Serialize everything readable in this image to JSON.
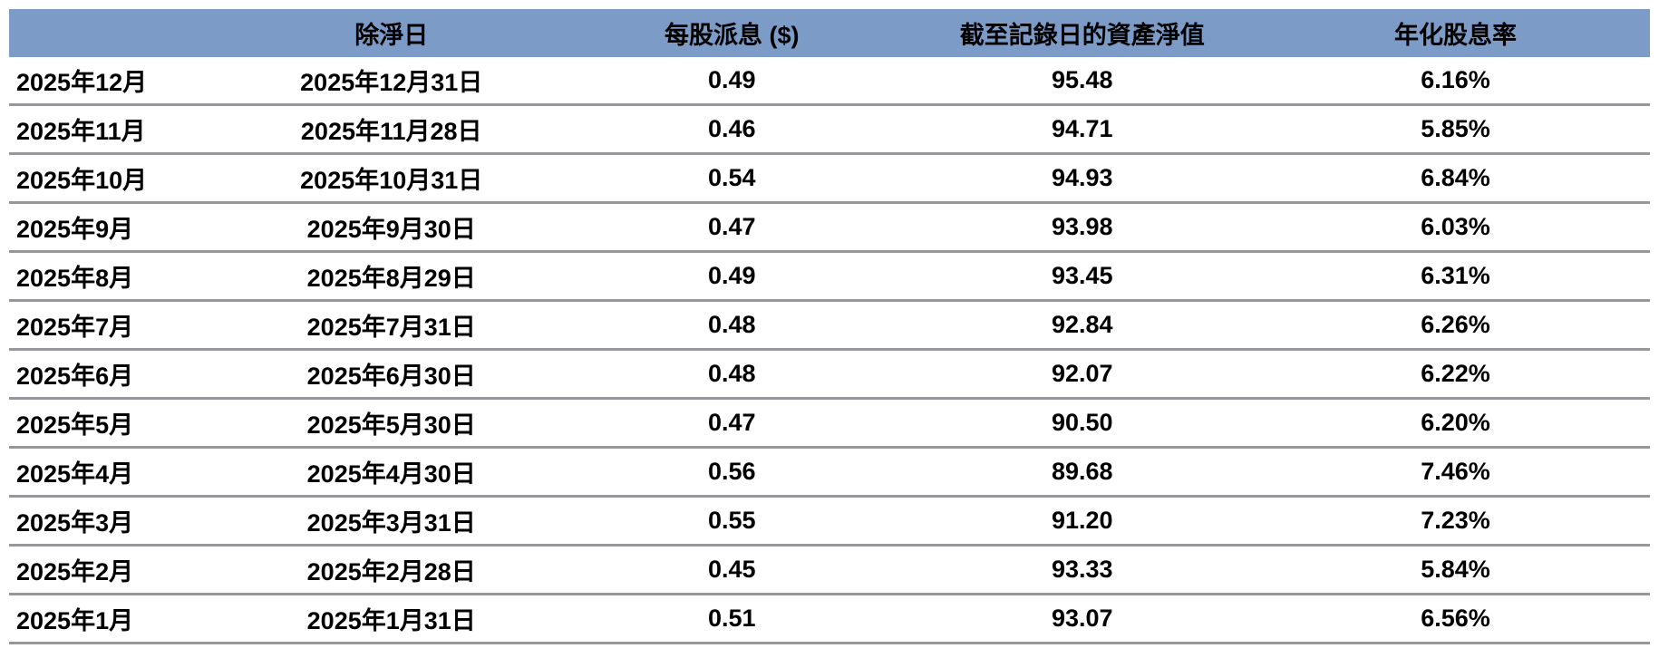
{
  "colors": {
    "header_bg": "#7C9BC7",
    "row_line": "#97979B",
    "text": "#000000",
    "page_bg": "#FFFFFF"
  },
  "chart_data": {
    "type": "table",
    "title": "",
    "columns": [
      "",
      "除淨日",
      "每股派息 ($)",
      "截至記錄日的資產淨值",
      "年化股息率"
    ],
    "rows": [
      [
        "2025年12月",
        "2025年12月31日",
        "0.49",
        "95.48",
        "6.16%"
      ],
      [
        "2025年11月",
        "2025年11月28日",
        "0.46",
        "94.71",
        "5.85%"
      ],
      [
        "2025年10月",
        "2025年10月31日",
        "0.54",
        "94.93",
        "6.84%"
      ],
      [
        "2025年9月",
        "2025年9月30日",
        "0.47",
        "93.98",
        "6.03%"
      ],
      [
        "2025年8月",
        "2025年8月29日",
        "0.49",
        "93.45",
        "6.31%"
      ],
      [
        "2025年7月",
        "2025年7月31日",
        "0.48",
        "92.84",
        "6.26%"
      ],
      [
        "2025年6月",
        "2025年6月30日",
        "0.48",
        "92.07",
        "6.22%"
      ],
      [
        "2025年5月",
        "2025年5月30日",
        "0.47",
        "90.50",
        "6.20%"
      ],
      [
        "2025年4月",
        "2025年4月30日",
        "0.56",
        "89.68",
        "7.46%"
      ],
      [
        "2025年3月",
        "2025年3月31日",
        "0.55",
        "91.20",
        "7.23%"
      ],
      [
        "2025年2月",
        "2025年2月28日",
        "0.45",
        "93.33",
        "5.84%"
      ],
      [
        "2025年1月",
        "2025年1月31日",
        "0.51",
        "93.07",
        "6.56%"
      ]
    ]
  }
}
